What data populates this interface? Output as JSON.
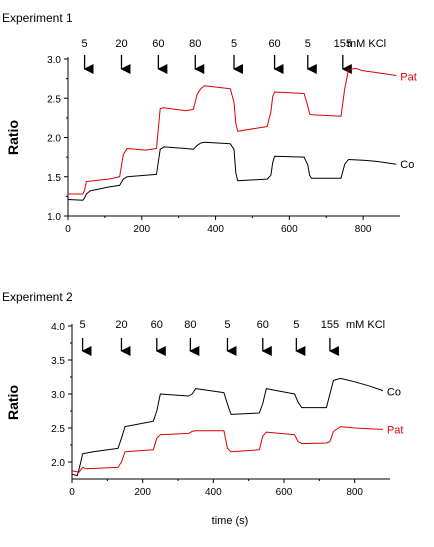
{
  "figure": {
    "xlabel": "time (s)"
  },
  "chart_data": [
    {
      "type": "line",
      "title": "Experiment 1",
      "xlabel": "",
      "ylabel": "Ratio",
      "xlim": [
        0,
        900
      ],
      "ylim": [
        1.0,
        3.0
      ],
      "x_ticks": [
        0,
        200,
        400,
        600,
        800
      ],
      "y_ticks": [
        1.0,
        1.5,
        2.0,
        2.5,
        3.0
      ],
      "y_tick_labels": [
        "1.0",
        "1.5",
        "2.0",
        "2.5",
        "3.0"
      ],
      "unit_label": "mM KCl",
      "stimuli": [
        {
          "t": 45,
          "label": "5"
        },
        {
          "t": 145,
          "label": "20"
        },
        {
          "t": 245,
          "label": "60"
        },
        {
          "t": 345,
          "label": "80"
        },
        {
          "t": 450,
          "label": "5"
        },
        {
          "t": 560,
          "label": "60"
        },
        {
          "t": 650,
          "label": "5"
        },
        {
          "t": 745,
          "label": "155"
        }
      ],
      "series": [
        {
          "name": "Pat",
          "color": "#dd0000",
          "x": [
            0,
            40,
            45,
            50,
            110,
            140,
            150,
            160,
            210,
            240,
            250,
            260,
            320,
            340,
            350,
            360,
            370,
            440,
            450,
            455,
            460,
            540,
            550,
            555,
            560,
            640,
            650,
            655,
            660,
            740,
            750,
            760,
            780,
            800,
            830,
            860,
            890
          ],
          "y": [
            1.28,
            1.28,
            1.33,
            1.44,
            1.47,
            1.5,
            1.78,
            1.86,
            1.84,
            1.86,
            2.37,
            2.38,
            2.34,
            2.36,
            2.55,
            2.62,
            2.66,
            2.62,
            2.45,
            2.18,
            2.08,
            2.14,
            2.33,
            2.52,
            2.58,
            2.56,
            2.4,
            2.3,
            2.29,
            2.27,
            2.62,
            2.86,
            2.88,
            2.85,
            2.83,
            2.81,
            2.79
          ]
        },
        {
          "name": "Co",
          "color": "#000000",
          "x": [
            0,
            40,
            45,
            50,
            60,
            110,
            140,
            150,
            160,
            210,
            240,
            250,
            260,
            320,
            340,
            350,
            360,
            370,
            440,
            450,
            455,
            460,
            540,
            550,
            555,
            560,
            640,
            650,
            655,
            660,
            740,
            750,
            760,
            800,
            830,
            860,
            890
          ],
          "y": [
            1.21,
            1.2,
            1.23,
            1.28,
            1.32,
            1.37,
            1.39,
            1.47,
            1.5,
            1.52,
            1.53,
            1.85,
            1.88,
            1.86,
            1.85,
            1.9,
            1.93,
            1.94,
            1.92,
            1.85,
            1.55,
            1.45,
            1.47,
            1.52,
            1.68,
            1.76,
            1.75,
            1.65,
            1.52,
            1.48,
            1.48,
            1.66,
            1.72,
            1.71,
            1.7,
            1.68,
            1.66
          ]
        }
      ]
    },
    {
      "type": "line",
      "title": "Experiment 2",
      "xlabel": "time (s)",
      "ylabel": "Ratio",
      "xlim": [
        0,
        900
      ],
      "ylim": [
        1.75,
        4.0
      ],
      "x_ticks": [
        0,
        200,
        400,
        600,
        800
      ],
      "y_ticks": [
        2.0,
        2.5,
        3.0,
        3.5,
        4.0
      ],
      "y_tick_labels": [
        "2.0",
        "2.5",
        "3.0",
        "3.5",
        "4.0"
      ],
      "unit_label": "mM KCl",
      "stimuli": [
        {
          "t": 30,
          "label": "5"
        },
        {
          "t": 140,
          "label": "20"
        },
        {
          "t": 240,
          "label": "60"
        },
        {
          "t": 335,
          "label": "80"
        },
        {
          "t": 440,
          "label": "5"
        },
        {
          "t": 540,
          "label": "60"
        },
        {
          "t": 635,
          "label": "5"
        },
        {
          "t": 730,
          "label": "155"
        }
      ],
      "series": [
        {
          "name": "Co",
          "color": "#000000",
          "x": [
            0,
            15,
            20,
            25,
            30,
            60,
            130,
            140,
            150,
            230,
            240,
            250,
            330,
            340,
            350,
            430,
            440,
            450,
            530,
            540,
            550,
            630,
            640,
            650,
            720,
            730,
            740,
            760,
            800,
            840,
            880
          ],
          "y": [
            1.82,
            1.8,
            1.9,
            2.0,
            2.12,
            2.15,
            2.2,
            2.35,
            2.52,
            2.6,
            2.75,
            3.0,
            2.97,
            3.0,
            3.08,
            3.02,
            2.85,
            2.7,
            2.72,
            2.86,
            3.08,
            3.0,
            2.88,
            2.8,
            2.8,
            3.0,
            3.2,
            3.23,
            3.18,
            3.12,
            3.05
          ]
        },
        {
          "name": "Pat",
          "color": "#dd0000",
          "x": [
            0,
            20,
            30,
            40,
            130,
            140,
            150,
            230,
            240,
            250,
            330,
            340,
            350,
            430,
            440,
            450,
            530,
            540,
            550,
            630,
            640,
            650,
            720,
            730,
            740,
            760,
            800,
            840,
            880
          ],
          "y": [
            1.87,
            1.85,
            1.92,
            1.9,
            1.92,
            2.0,
            2.15,
            2.18,
            2.35,
            2.4,
            2.42,
            2.45,
            2.46,
            2.46,
            2.2,
            2.15,
            2.18,
            2.38,
            2.44,
            2.4,
            2.3,
            2.27,
            2.28,
            2.3,
            2.45,
            2.52,
            2.5,
            2.49,
            2.48
          ]
        }
      ]
    }
  ]
}
